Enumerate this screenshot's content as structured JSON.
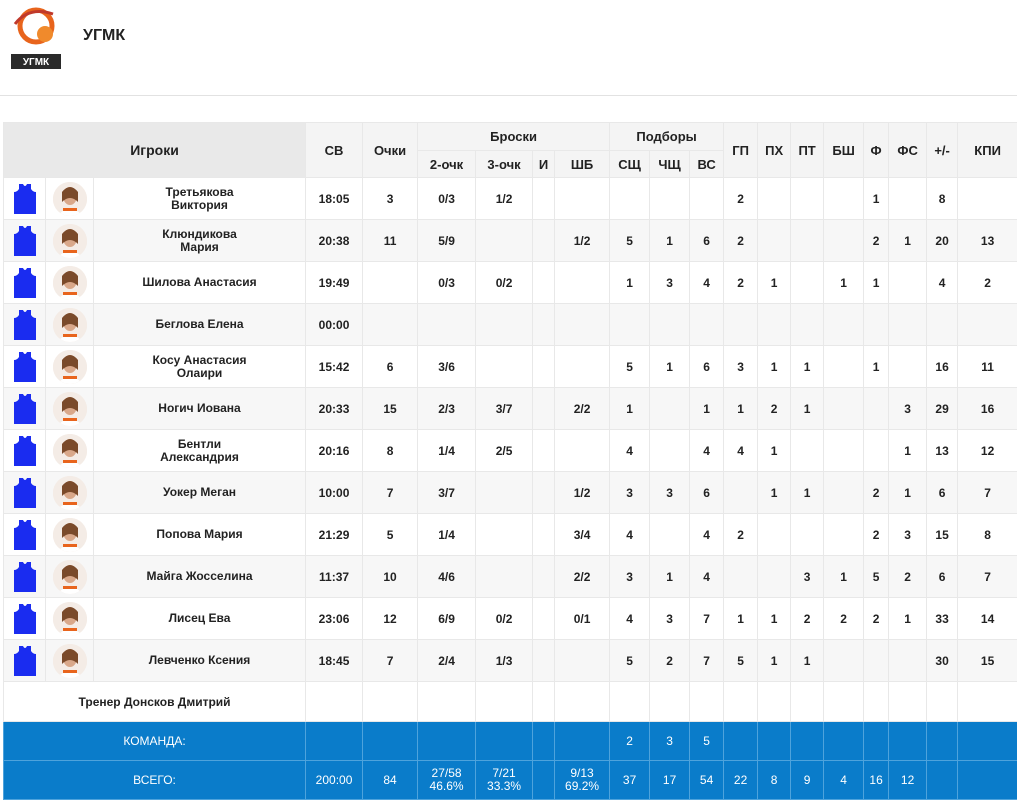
{
  "team": {
    "name": "УГМК",
    "logo_text": "УГМК"
  },
  "headers": {
    "players": "Игроки",
    "min": "СВ",
    "pts": "Очки",
    "shots": "Броски",
    "two": "2-очк",
    "three": "3-очк",
    "i": "И",
    "ft": "ШБ",
    "reb": "Подборы",
    "oreb": "СЩ",
    "dreb": "ЧЩ",
    "treb": "ВС",
    "ast": "ГП",
    "stl": "ПХ",
    "tov": "ПТ",
    "blk": "БШ",
    "pf": "Ф",
    "fd": "ФС",
    "pm": "+/-",
    "eff": "КПИ"
  },
  "players": [
    {
      "name": "Третьякова\nВиктория",
      "min": "18:05",
      "pts": "3",
      "two": "0/3",
      "three": "1/2",
      "i": "",
      "ft": "",
      "oreb": "",
      "dreb": "",
      "treb": "",
      "ast": "2",
      "stl": "",
      "tov": "",
      "blk": "",
      "pf": "1",
      "fd": "",
      "pm": "8",
      "eff": ""
    },
    {
      "name": "Клюндикова\nМария",
      "min": "20:38",
      "pts": "11",
      "two": "5/9",
      "three": "",
      "i": "",
      "ft": "1/2",
      "oreb": "5",
      "dreb": "1",
      "treb": "6",
      "ast": "2",
      "stl": "",
      "tov": "",
      "blk": "",
      "pf": "2",
      "fd": "1",
      "pm": "20",
      "eff": "13"
    },
    {
      "name": "Шилова Анастасия",
      "min": "19:49",
      "pts": "",
      "two": "0/3",
      "three": "0/2",
      "i": "",
      "ft": "",
      "oreb": "1",
      "dreb": "3",
      "treb": "4",
      "ast": "2",
      "stl": "1",
      "tov": "",
      "blk": "1",
      "pf": "1",
      "fd": "",
      "pm": "4",
      "eff": "2"
    },
    {
      "name": "Беглова Елена",
      "min": "00:00",
      "pts": "",
      "two": "",
      "three": "",
      "i": "",
      "ft": "",
      "oreb": "",
      "dreb": "",
      "treb": "",
      "ast": "",
      "stl": "",
      "tov": "",
      "blk": "",
      "pf": "",
      "fd": "",
      "pm": "",
      "eff": ""
    },
    {
      "name": "Косу Анастасия\nОлаири",
      "min": "15:42",
      "pts": "6",
      "two": "3/6",
      "three": "",
      "i": "",
      "ft": "",
      "oreb": "5",
      "dreb": "1",
      "treb": "6",
      "ast": "3",
      "stl": "1",
      "tov": "1",
      "blk": "",
      "pf": "1",
      "fd": "",
      "pm": "16",
      "eff": "11"
    },
    {
      "name": "Ногич Иована",
      "min": "20:33",
      "pts": "15",
      "two": "2/3",
      "three": "3/7",
      "i": "",
      "ft": "2/2",
      "oreb": "1",
      "dreb": "",
      "treb": "1",
      "ast": "1",
      "stl": "2",
      "tov": "1",
      "blk": "",
      "pf": "",
      "fd": "3",
      "pm": "29",
      "eff": "16"
    },
    {
      "name": "Бентли\nАлександрия",
      "min": "20:16",
      "pts": "8",
      "two": "1/4",
      "three": "2/5",
      "i": "",
      "ft": "",
      "oreb": "4",
      "dreb": "",
      "treb": "4",
      "ast": "4",
      "stl": "1",
      "tov": "",
      "blk": "",
      "pf": "",
      "fd": "1",
      "pm": "13",
      "eff": "12"
    },
    {
      "name": "Уокер Меган",
      "min": "10:00",
      "pts": "7",
      "two": "3/7",
      "three": "",
      "i": "",
      "ft": "1/2",
      "oreb": "3",
      "dreb": "3",
      "treb": "6",
      "ast": "",
      "stl": "1",
      "tov": "1",
      "blk": "",
      "pf": "2",
      "fd": "1",
      "pm": "6",
      "eff": "7"
    },
    {
      "name": "Попова Мария",
      "min": "21:29",
      "pts": "5",
      "two": "1/4",
      "three": "",
      "i": "",
      "ft": "3/4",
      "oreb": "4",
      "dreb": "",
      "treb": "4",
      "ast": "2",
      "stl": "",
      "tov": "",
      "blk": "",
      "pf": "2",
      "fd": "3",
      "pm": "15",
      "eff": "8"
    },
    {
      "name": "Майга Жосселина",
      "min": "11:37",
      "pts": "10",
      "two": "4/6",
      "three": "",
      "i": "",
      "ft": "2/2",
      "oreb": "3",
      "dreb": "1",
      "treb": "4",
      "ast": "",
      "stl": "",
      "tov": "3",
      "blk": "1",
      "pf": "5",
      "fd": "2",
      "pm": "6",
      "eff": "7"
    },
    {
      "name": "Лисец Ева",
      "min": "23:06",
      "pts": "12",
      "two": "6/9",
      "three": "0/2",
      "i": "",
      "ft": "0/1",
      "oreb": "4",
      "dreb": "3",
      "treb": "7",
      "ast": "1",
      "stl": "1",
      "tov": "2",
      "blk": "2",
      "pf": "2",
      "fd": "1",
      "pm": "33",
      "eff": "14"
    },
    {
      "name": "Левченко Ксения",
      "min": "18:45",
      "pts": "7",
      "two": "2/4",
      "three": "1/3",
      "i": "",
      "ft": "",
      "oreb": "5",
      "dreb": "2",
      "treb": "7",
      "ast": "5",
      "stl": "1",
      "tov": "1",
      "blk": "",
      "pf": "",
      "fd": "",
      "pm": "30",
      "eff": "15"
    }
  ],
  "coach": "Тренер Донсков Дмитрий",
  "team_row": {
    "label": "КОМАНДА:",
    "oreb": "2",
    "dreb": "3",
    "treb": "5"
  },
  "total_row": {
    "label": "ВСЕГО:",
    "min": "200:00",
    "pts": "84",
    "two": "27/58",
    "two_pct": "46.6%",
    "three": "7/21",
    "three_pct": "33.3%",
    "ft": "9/13",
    "ft_pct": "69.2%",
    "oreb": "37",
    "dreb": "17",
    "treb": "54",
    "ast": "22",
    "stl": "8",
    "tov": "9",
    "blk": "4",
    "pf": "16",
    "fd": "12",
    "pm": "",
    "eff": ""
  },
  "colors": {
    "jersey": "#1a2cf0",
    "summary_bg": "#0a7cca",
    "logo_orange": "#e8641c",
    "logo_dark": "#2a2a2a"
  }
}
